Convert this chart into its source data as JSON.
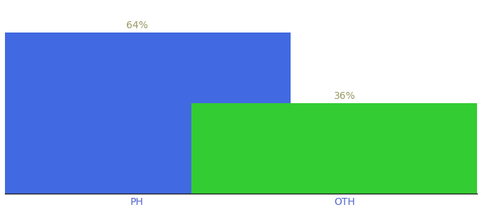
{
  "categories": [
    "PH",
    "OTH"
  ],
  "values": [
    64,
    36
  ],
  "bar_colors": [
    "#4169e1",
    "#33cc33"
  ],
  "label_texts": [
    "64%",
    "36%"
  ],
  "label_color": "#999966",
  "tick_color": "#5566cc",
  "ylim": [
    0,
    75
  ],
  "background_color": "#ffffff",
  "bar_width": 0.65,
  "bar_positions": [
    0.28,
    0.72
  ],
  "xlim": [
    0.0,
    1.0
  ],
  "figsize": [
    6.8,
    3.0
  ],
  "dpi": 100,
  "label_fontsize": 10,
  "tick_fontsize": 10
}
